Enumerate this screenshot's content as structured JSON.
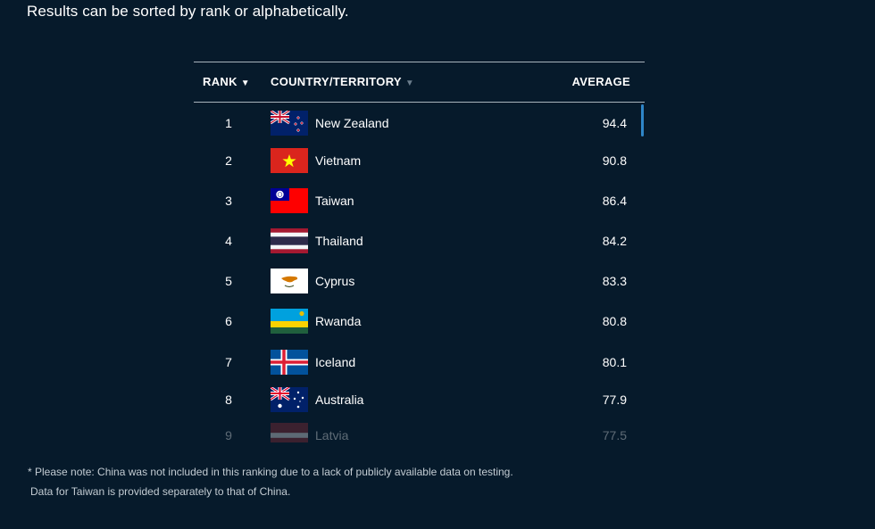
{
  "intro": "Results can be sorted by rank or alphabetically.",
  "table": {
    "headers": {
      "rank": "RANK",
      "country": "COUNTRY/TERRITORY",
      "average": "AVERAGE"
    },
    "rows": [
      {
        "rank": "1",
        "country": "New Zealand",
        "average": "94.4",
        "flag": "new-zealand-flag"
      },
      {
        "rank": "2",
        "country": "Vietnam",
        "average": "90.8",
        "flag": "vietnam-flag"
      },
      {
        "rank": "3",
        "country": "Taiwan",
        "average": "86.4",
        "flag": "taiwan-flag"
      },
      {
        "rank": "4",
        "country": "Thailand",
        "average": "84.2",
        "flag": "thailand-flag"
      },
      {
        "rank": "5",
        "country": "Cyprus",
        "average": "83.3",
        "flag": "cyprus-flag"
      },
      {
        "rank": "6",
        "country": "Rwanda",
        "average": "80.8",
        "flag": "rwanda-flag"
      },
      {
        "rank": "7",
        "country": "Iceland",
        "average": "80.1",
        "flag": "iceland-flag"
      },
      {
        "rank": "8",
        "country": "Australia",
        "average": "77.9",
        "flag": "australia-flag"
      },
      {
        "rank": "9",
        "country": "Latvia",
        "average": "77.5",
        "flag": "latvia-flag"
      }
    ]
  },
  "notes": [
    "* Please note: China was not included in this ranking due to a lack of publicly available data on testing.",
    "Data for Taiwan is provided separately to that of China."
  ],
  "colors": {
    "background": "#061a2b",
    "accent": "#2f86c8"
  }
}
